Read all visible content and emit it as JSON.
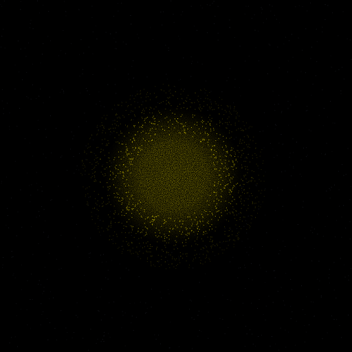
{
  "scene": {
    "subject": "glowing-particle-sphere",
    "colors": {
      "background": "#000000",
      "core": "#FFEE00",
      "mid": "#E8D800",
      "edge": "#7A7000",
      "background_speckle": "#1E2028"
    }
  }
}
